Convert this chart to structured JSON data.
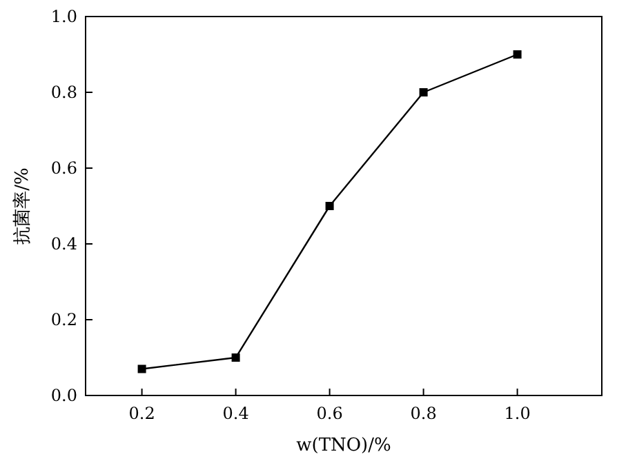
{
  "chart_data": {
    "type": "line",
    "xlabel": "w(TNO)/%",
    "ylabel": "抗菌率/%",
    "x": [
      0.2,
      0.4,
      0.6,
      0.8,
      1.0
    ],
    "series": [
      {
        "color": "#000000",
        "values": [
          0.07,
          0.1,
          0.5,
          0.8,
          0.9
        ]
      }
    ],
    "xlim": [
      0.08,
      1.18
    ],
    "ylim": [
      0,
      1.0
    ],
    "xticks": [
      0.2,
      0.4,
      0.6,
      0.8,
      {
        "value": 1,
        "label": "1.0"
      }
    ],
    "yticks": [
      {
        "value": 0,
        "label": "0.0"
      },
      0.2,
      0.4,
      0.6,
      0.8,
      {
        "value": 1,
        "label": "1.0"
      }
    ],
    "marker": "square",
    "line_style": "solid",
    "grid": false
  }
}
